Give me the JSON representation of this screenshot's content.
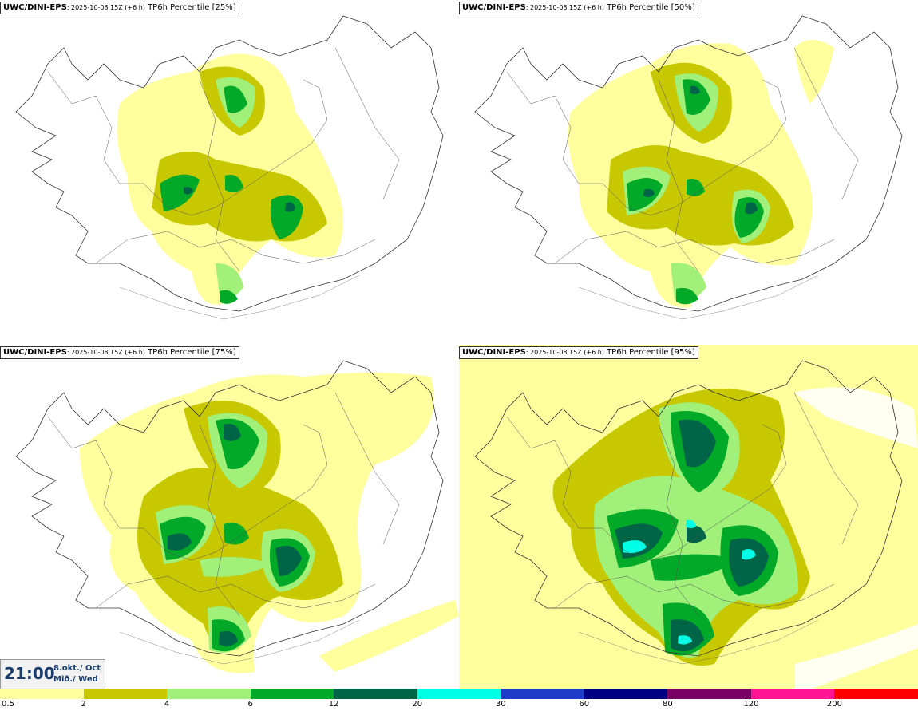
{
  "panels": [
    {
      "model": "UWC/DINI-EPS",
      "meta": ": 2025-10-08 15Z (+6 h)",
      "product": " TP6h Percentile [25%]",
      "percentile": 25
    },
    {
      "model": "UWC/DINI-EPS",
      "meta": ": 2025-10-08 15Z (+6 h)",
      "product": " TP6h Percentile [50%]",
      "percentile": 50
    },
    {
      "model": "UWC/DINI-EPS",
      "meta": ": 2025-10-08 15Z (+6 h)",
      "product": " TP6h Percentile [75%]",
      "percentile": 75
    },
    {
      "model": "UWC/DINI-EPS",
      "meta": ": 2025-10-08 15Z (+6 h)",
      "product": " TP6h Percentile [95%]",
      "percentile": 95
    }
  ],
  "valid_time": {
    "time": "21:00",
    "date": "8.okt./ Oct",
    "day": "Mið./ Wed"
  },
  "legend": {
    "colors": [
      "#ffff9e",
      "#c8c800",
      "#a0f07a",
      "#00aa28",
      "#006446",
      "#00ffe6",
      "#1e3cc8",
      "#000082",
      "#780064",
      "#ff1493",
      "#ff0000"
    ],
    "labels": [
      "0.5",
      "2",
      "4",
      "6",
      "12",
      "20",
      "30",
      "60",
      "80",
      "120",
      "200"
    ]
  }
}
